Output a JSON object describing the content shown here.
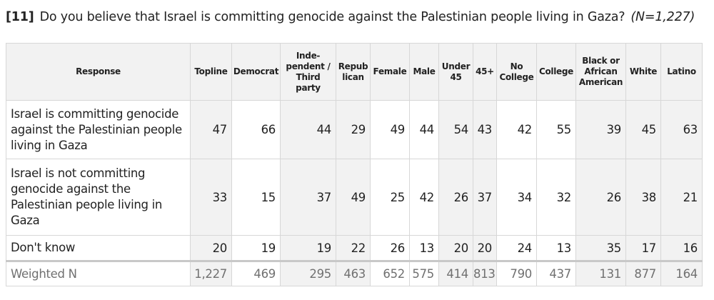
{
  "question": {
    "number": "[11]",
    "text": "Do you believe that Israel is committing genocide against the Palestinian people living in Gaza?",
    "n": "(N=1,227)"
  },
  "table": {
    "columns": [
      "Response",
      "Topline",
      "Democrat",
      "Inde-\npendent /\nThird\nparty",
      "Repub\nlican",
      "Female",
      "Male",
      "Under\n45",
      "45+",
      "No\nCollege",
      "College",
      "Black or\nAfrican\nAmerican",
      "White",
      "Latino"
    ],
    "rows": [
      {
        "label": "Israel is committing genocide against the Palestinian people living in Gaza",
        "values": [
          "47",
          "66",
          "44",
          "29",
          "49",
          "44",
          "54",
          "43",
          "42",
          "55",
          "39",
          "45",
          "63"
        ]
      },
      {
        "label": "Israel is not committing genocide against the Palestinian people living in Gaza",
        "values": [
          "33",
          "15",
          "37",
          "49",
          "25",
          "42",
          "26",
          "37",
          "34",
          "32",
          "26",
          "38",
          "21"
        ]
      },
      {
        "label": "Don't know",
        "values": [
          "20",
          "19",
          "19",
          "22",
          "26",
          "13",
          "20",
          "20",
          "24",
          "13",
          "35",
          "17",
          "16"
        ]
      }
    ],
    "weighted": {
      "label": "Weighted N",
      "values": [
        "1,227",
        "469",
        "295",
        "463",
        "652",
        "575",
        "414",
        "813",
        "790",
        "437",
        "131",
        "877",
        "164"
      ]
    }
  }
}
